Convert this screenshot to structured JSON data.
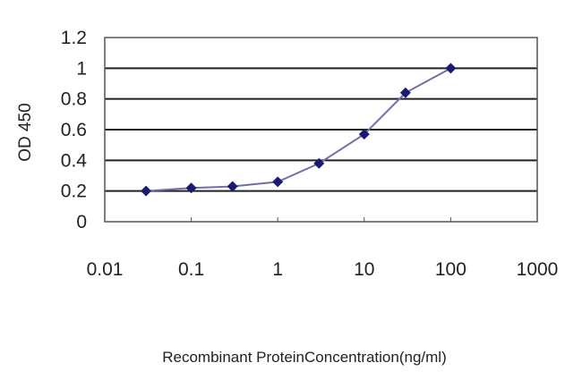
{
  "chart_data": {
    "type": "line",
    "title": "",
    "xlabel": "Recombinant ProteinConcentration(ng/ml)",
    "ylabel": "OD 450",
    "x_scale": "log",
    "xlim": [
      0.01,
      1000
    ],
    "ylim": [
      0,
      1.2
    ],
    "x_ticks": [
      "0.01",
      "0.1",
      "1",
      "10",
      "100",
      "1000"
    ],
    "y_ticks": [
      "0",
      "0.2",
      "0.4",
      "0.6",
      "0.8",
      "1",
      "1.2"
    ],
    "grid": "horizontal",
    "series": [
      {
        "x": [
          0.03,
          0.1,
          0.3,
          1,
          3,
          10,
          30,
          100
        ],
        "y": [
          0.2,
          0.22,
          0.23,
          0.26,
          0.38,
          0.57,
          0.84,
          1.0
        ]
      }
    ],
    "colors": {
      "line": "#7070a8",
      "marker": "#1a1a70",
      "grid": "#222222"
    }
  }
}
